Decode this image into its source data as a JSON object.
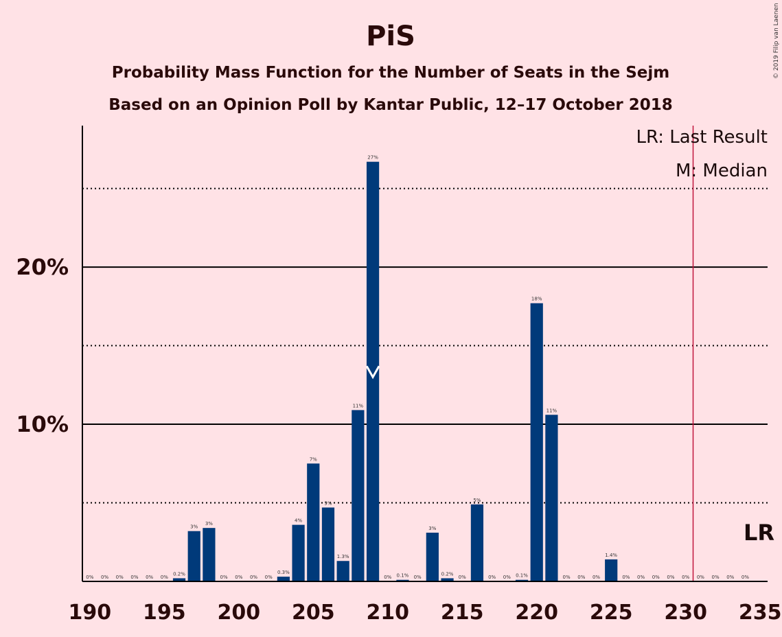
{
  "chart_data": {
    "type": "bar",
    "title": "PiS",
    "subtitle_lines": [
      "Probability Mass Function for the Number of Seats in the Sejm",
      "Based on an Opinion Poll by Kantar Public, 12–17 October 2018"
    ],
    "copyright": "© 2019 Filip van Laenen",
    "x": [
      190,
      191,
      192,
      193,
      194,
      195,
      196,
      197,
      198,
      199,
      200,
      201,
      202,
      203,
      204,
      205,
      206,
      207,
      208,
      209,
      210,
      211,
      212,
      213,
      214,
      215,
      216,
      217,
      218,
      219,
      220,
      221,
      222,
      223,
      224,
      225,
      226,
      227,
      228,
      229,
      230,
      231,
      232,
      233,
      234
    ],
    "values": [
      0,
      0,
      0,
      0,
      0,
      0,
      0.2,
      3.2,
      3.4,
      0,
      0,
      0,
      0,
      0.3,
      3.6,
      7.5,
      4.7,
      1.3,
      10.9,
      26.7,
      0,
      0.1,
      0,
      3.1,
      0.2,
      0,
      4.9,
      0,
      0,
      0.1,
      17.7,
      10.6,
      0,
      0,
      0,
      1.4,
      0,
      0,
      0,
      0,
      0,
      0,
      0,
      0,
      0
    ],
    "labels": [
      "0%",
      "0%",
      "0%",
      "0%",
      "0%",
      "0%",
      "0.2%",
      "3%",
      "3%",
      "0%",
      "0%",
      "0%",
      "0%",
      "0.3%",
      "4%",
      "7%",
      "5%",
      "1.3%",
      "11%",
      "27%",
      "0%",
      "0.1%",
      "0%",
      "3%",
      "0.2%",
      "0%",
      "5%",
      "0%",
      "0%",
      "0.1%",
      "18%",
      "11%",
      "0%",
      "0%",
      "0%",
      "1.4%",
      "0%",
      "0%",
      "0%",
      "0%",
      "0%",
      "0%",
      "0%",
      "0%",
      "0%"
    ],
    "x_ticks": [
      190,
      195,
      200,
      205,
      210,
      215,
      220,
      225,
      230,
      235
    ],
    "x_tick_labels": [
      "190",
      "195",
      "200",
      "205",
      "210",
      "215",
      "220",
      "225",
      "230",
      "235"
    ],
    "y_ticks": [
      {
        "value": 10,
        "label": "10%",
        "style": "solid"
      },
      {
        "value": 20,
        "label": "20%",
        "style": "solid"
      }
    ],
    "y_minor_gridlines": [
      5,
      15,
      25
    ],
    "ylim": [
      0,
      29
    ],
    "xlim": [
      189.5,
      235.5
    ],
    "last_result": {
      "seat": 230.5,
      "marker_label": "LR"
    },
    "median": {
      "seat": 209,
      "value": 13
    },
    "legend": [
      "LR: Last Result",
      "M: Median"
    ],
    "legend_position": "top-right",
    "colors": {
      "background": "#ffe2e6",
      "bar": "#003a7a",
      "last_result_line": "#c0143c",
      "grid": "#000000",
      "text": "#2a0a0a"
    }
  }
}
